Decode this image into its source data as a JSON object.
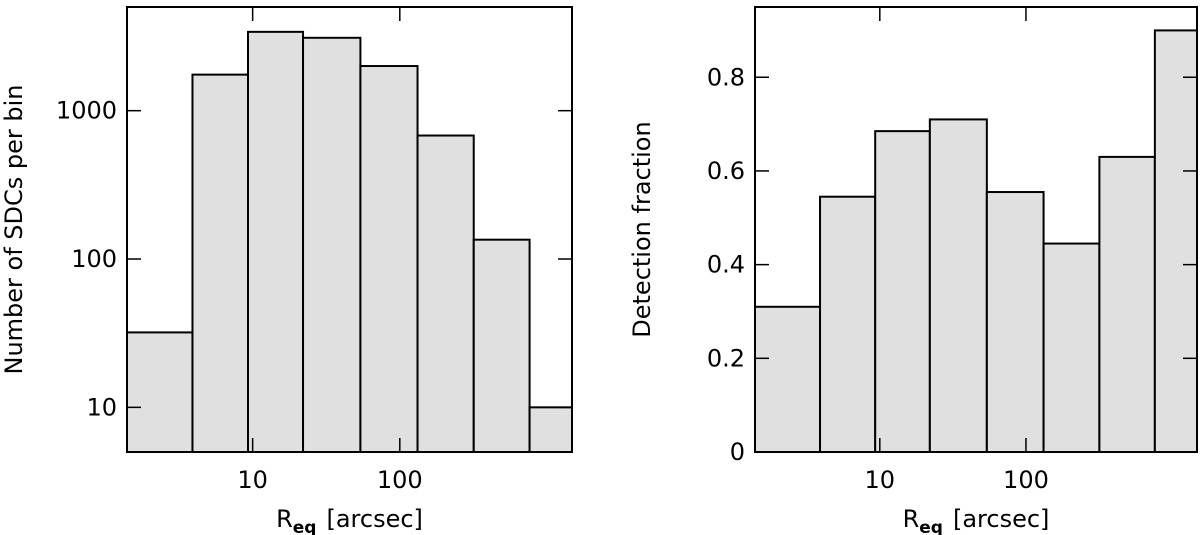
{
  "chart_data": [
    {
      "type": "histogram",
      "ylabel": "Number of SDCs per bin",
      "xlabel": {
        "main": "R",
        "sub": "eq",
        "unit": "[arcsec]"
      },
      "bins": [
        1.4,
        3.9,
        9.3,
        22,
        54,
        132,
        318,
        762,
        1480
      ],
      "values": [
        32,
        1750,
        3400,
        3100,
        2000,
        680,
        135,
        10
      ],
      "color": "#e0e0e0",
      "xlog": true,
      "ylog": true,
      "xlim": [
        1.4,
        1480
      ],
      "xticks": [
        10,
        100
      ],
      "ylim": [
        5,
        5000
      ],
      "yticks": [
        10,
        100,
        1000
      ]
    },
    {
      "type": "histogram",
      "ylabel": "Detection fraction",
      "xlabel": {
        "main": "R",
        "sub": "eq",
        "unit": "[arcsec]"
      },
      "bins": [
        1.4,
        3.9,
        9.3,
        22,
        54,
        132,
        318,
        762,
        1480
      ],
      "values": [
        0.31,
        0.545,
        0.685,
        0.71,
        0.555,
        0.445,
        0.63,
        0.9
      ],
      "color": "#e0e0e0",
      "xlog": true,
      "ylog": false,
      "xlim": [
        1.4,
        1480
      ],
      "xticks": [
        10,
        100
      ],
      "ylim": [
        0,
        0.95
      ],
      "yticks": [
        0,
        0.2,
        0.4,
        0.6,
        0.8
      ]
    }
  ]
}
